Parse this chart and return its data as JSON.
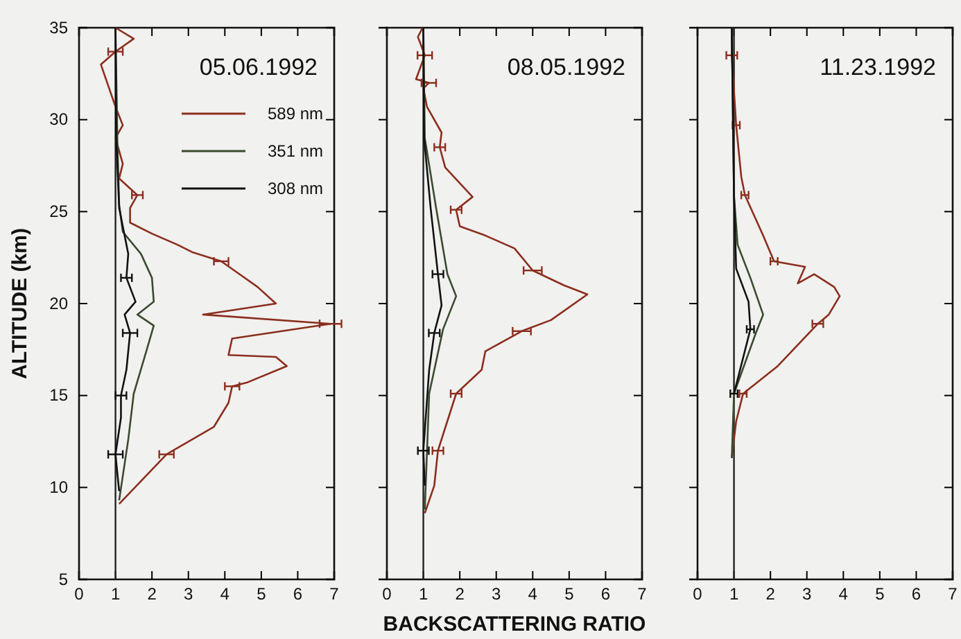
{
  "chart_data": [
    {
      "type": "line",
      "title": "05.06.1992",
      "ylabel": "ALTITUDE (km)",
      "xlim": [
        0,
        7
      ],
      "ylim": [
        5,
        35
      ],
      "xticks": [
        0,
        1,
        2,
        3,
        4,
        5,
        6,
        7
      ],
      "yticks": [
        5,
        10,
        15,
        20,
        25,
        30,
        35
      ],
      "legend": "top right",
      "marker": "none",
      "line_style": "solid",
      "ref_lines": [
        {
          "axis": "x",
          "value": 1,
          "color": "#222222"
        }
      ],
      "series": [
        {
          "name": "589 nm",
          "color": "#8b2e1e",
          "x": [
            1.1,
            2.4,
            3.7,
            4.1,
            4.2,
            4.6,
            5.7,
            5.4,
            4.1,
            4.2,
            6.9,
            3.4,
            5.4,
            4.9,
            4.4,
            3.9,
            3.1,
            2.7,
            2.0,
            1.4,
            1.4,
            1.6,
            1.1,
            1.2,
            1.0,
            1.2,
            1.0,
            0.6,
            1.0,
            1.5,
            1.0
          ],
          "values": [
            9.1,
            11.8,
            13.3,
            14.6,
            15.5,
            15.7,
            16.6,
            17.1,
            17.2,
            18.1,
            18.9,
            19.4,
            20.0,
            20.9,
            21.6,
            22.3,
            22.8,
            23.2,
            23.8,
            24.4,
            25.2,
            25.9,
            26.8,
            27.6,
            29.0,
            29.7,
            30.7,
            33.0,
            33.7,
            34.4,
            35
          ],
          "xerrors": [
            null,
            0.2,
            null,
            null,
            0.2,
            null,
            null,
            null,
            null,
            null,
            0.3,
            null,
            null,
            null,
            null,
            0.2,
            null,
            null,
            null,
            null,
            null,
            0.15,
            null,
            null,
            null,
            null,
            null,
            null,
            0.2,
            null,
            null
          ]
        },
        {
          "name": "351 nm",
          "color": "#3a4a30",
          "x": [
            1.1,
            1.35,
            1.5,
            1.8,
            2.05,
            1.6,
            2.05,
            2.0,
            1.7,
            1.2,
            1.1,
            1.05,
            1.0
          ],
          "values": [
            9.3,
            12.6,
            15.1,
            17.1,
            18.8,
            19.4,
            20.1,
            21.4,
            22.7,
            23.9,
            25.4,
            29,
            35
          ]
        },
        {
          "name": "308 nm",
          "color": "#111111",
          "x": [
            1.1,
            1.0,
            1.15,
            1.15,
            1.3,
            1.4,
            1.25,
            1.55,
            1.3,
            1.35,
            1.1,
            1.02,
            1.0
          ],
          "values": [
            9.8,
            11.8,
            13.8,
            15.0,
            16.4,
            18.4,
            19.4,
            20.1,
            21.4,
            22.7,
            25.2,
            29,
            35
          ],
          "xerrors": [
            null,
            0.2,
            null,
            0.15,
            null,
            0.2,
            null,
            null,
            0.15,
            null,
            null,
            null,
            null
          ]
        }
      ]
    },
    {
      "type": "line",
      "title": "08.05.1992",
      "xlabel": "BACKSCATTERING RATIO",
      "xlim": [
        0,
        7
      ],
      "ylim": [
        5,
        35
      ],
      "xticks": [
        0,
        1,
        2,
        3,
        4,
        5,
        6,
        7
      ],
      "yticks": [
        5,
        10,
        15,
        20,
        25,
        30,
        35
      ],
      "tick_labels": "x",
      "marker": "none",
      "line_style": "solid",
      "ref_lines": [
        {
          "axis": "x",
          "value": 1,
          "color": "#222222"
        }
      ],
      "series": [
        {
          "color": "#8b2e1e",
          "x": [
            1.04,
            1.3,
            1.4,
            1.9,
            2.6,
            2.7,
            3.7,
            4.5,
            5.5,
            4.85,
            4.0,
            3.5,
            2.7,
            2.0,
            1.9,
            2.35,
            1.6,
            1.45,
            1.5,
            1.1,
            1.0,
            1.15,
            0.8,
            1.04,
            0.85,
            0.98
          ],
          "values": [
            8.6,
            10.1,
            12.0,
            15.1,
            16.4,
            17.4,
            18.5,
            19.1,
            20.5,
            21.0,
            21.8,
            23.0,
            23.7,
            24.2,
            25.1,
            25.8,
            27.4,
            28.5,
            29.3,
            30.7,
            31.7,
            32.0,
            32.2,
            33.5,
            34.5,
            35
          ],
          "xerrors": [
            null,
            null,
            0.15,
            0.15,
            null,
            null,
            0.25,
            null,
            null,
            null,
            0.25,
            null,
            null,
            null,
            0.15,
            null,
            null,
            0.15,
            null,
            null,
            null,
            0.2,
            null,
            0.2,
            null,
            null
          ]
        },
        {
          "color": "#3a4a30",
          "x": [
            1.04,
            1.16,
            1.54,
            1.9,
            1.66,
            1.35,
            1.04,
            1.0
          ],
          "values": [
            8.8,
            15.1,
            18.6,
            20.4,
            21.6,
            25.2,
            29,
            35
          ]
        },
        {
          "color": "#111111",
          "x": [
            1.04,
            1.0,
            1.16,
            1.3,
            1.5,
            1.4,
            1.2,
            1.02,
            1.0
          ],
          "values": [
            10.1,
            12.0,
            16.4,
            18.4,
            19.9,
            21.6,
            25.2,
            29,
            35
          ],
          "xerrors": [
            null,
            0.15,
            null,
            0.15,
            null,
            0.15,
            null,
            null,
            null
          ]
        }
      ]
    },
    {
      "type": "line",
      "title": "11.23.1992",
      "xlim": [
        0,
        7
      ],
      "ylim": [
        5,
        35
      ],
      "xticks": [
        0,
        1,
        2,
        3,
        4,
        5,
        6,
        7
      ],
      "yticks": [
        5,
        10,
        15,
        20,
        25,
        30,
        35
      ],
      "tick_labels": "x",
      "marker": "none",
      "line_style": "solid",
      "ref_lines": [
        {
          "axis": "x",
          "value": 1,
          "color": "#222222"
        }
      ],
      "series": [
        {
          "color": "#8b2e1e",
          "x": [
            0.94,
            1.06,
            1.25,
            2.2,
            3.3,
            3.6,
            3.9,
            3.75,
            3.2,
            2.75,
            2.95,
            2.1,
            1.8,
            1.3,
            1.2,
            1.06,
            0.94,
            0.94
          ],
          "values": [
            11.6,
            13.6,
            15.1,
            16.6,
            18.9,
            19.4,
            20.4,
            20.9,
            21.6,
            21.1,
            22.0,
            22.3,
            23.7,
            25.9,
            26.9,
            29.7,
            33.5,
            35
          ],
          "xerrors": [
            null,
            null,
            0.1,
            null,
            0.15,
            null,
            null,
            null,
            null,
            null,
            null,
            0.1,
            null,
            0.1,
            null,
            0.1,
            0.15,
            null
          ]
        },
        {
          "color": "#3a4a30",
          "x": [
            0.94,
            1.0,
            1.6,
            1.8,
            1.45,
            1.1,
            1.0,
            0.94
          ],
          "values": [
            11.6,
            15.1,
            18.4,
            19.4,
            21.4,
            23.2,
            25.9,
            35
          ]
        },
        {
          "color": "#111111",
          "x": [
            1.0,
            1.45,
            1.4,
            1.06,
            1.0,
            0.94
          ],
          "values": [
            15.1,
            18.6,
            20.1,
            21.9,
            25.9,
            35
          ],
          "xerrors": [
            0.1,
            0.1,
            null,
            null,
            null,
            null
          ]
        }
      ]
    }
  ]
}
